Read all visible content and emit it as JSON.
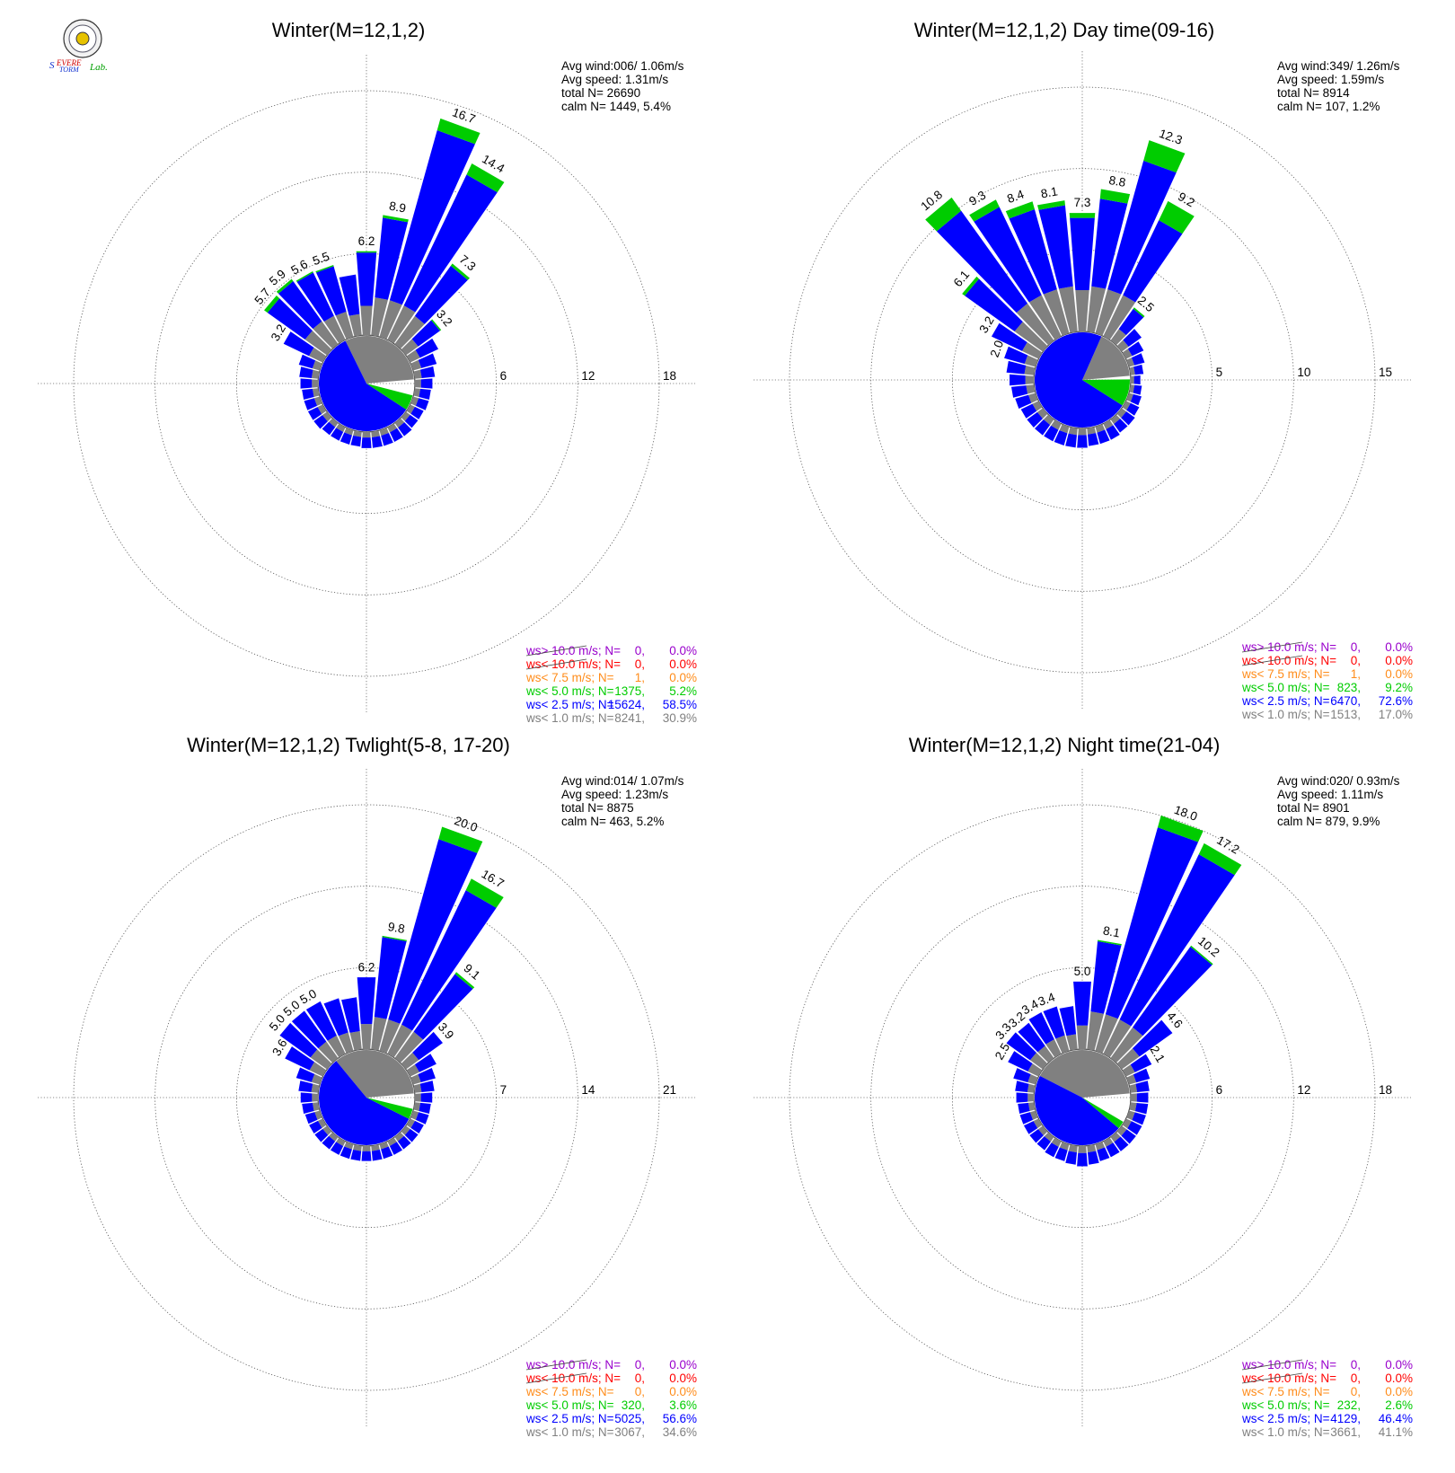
{
  "colors": {
    "ws_gt10": "#9900cc",
    "ws_lt10": "#ff0000",
    "ws_lt7_5": "#ff8c1a",
    "ws_lt5": "#00cc00",
    "ws_lt2_5": "#0000ff",
    "ws_lt1": "#808080"
  },
  "logo": {
    "icon": "severe-storm-lab-seal",
    "text": "Severe Storm Lab."
  },
  "legend_labels": [
    "ws> 10.0 m/s; N=",
    "ws< 10.0 m/s; N=",
    "ws<  7.5 m/s; N=",
    "ws<  5.0 m/s; N=",
    "ws<  2.5 m/s; N=",
    "ws<  1.0 m/s; N="
  ],
  "chart_data": [
    {
      "type": "polar-bar",
      "title": "Winter(M=12,1,2)",
      "stats": [
        "Avg wind:006/ 1.06m/s",
        "Avg speed: 1.31m/s",
        "total N=      26690",
        "calm N=   1449,   5.4%"
      ],
      "rings": [
        6,
        12,
        18
      ],
      "ring_labels": [
        "6",
        "12",
        "18"
      ],
      "rmax": 18,
      "calm_pie": {
        "gray": 0.309,
        "blue": 0.585,
        "green": 0.052
      },
      "petals": [
        {
          "dir": 0,
          "total": 6.2,
          "green": 0.1,
          "label": "6.2"
        },
        {
          "dir": 10,
          "total": 8.9,
          "green": 0.2,
          "label": "8.9"
        },
        {
          "dir": 20,
          "total": 16.7,
          "green": 0.9,
          "label": "16.7"
        },
        {
          "dir": 30,
          "total": 14.4,
          "green": 0.9,
          "label": "14.4"
        },
        {
          "dir": 40,
          "total": 7.3,
          "green": 0.2,
          "label": "7.3"
        },
        {
          "dir": 50,
          "total": 3.2,
          "green": 0.1,
          "label": "3.2"
        },
        {
          "dir": 60,
          "total": 2.3,
          "green": 0.0
        },
        {
          "dir": 70,
          "total": 1.8,
          "green": 0.0
        },
        {
          "dir": 80,
          "total": 1.5,
          "green": 0.0
        },
        {
          "dir": 90,
          "total": 1.3,
          "green": 0.0
        },
        {
          "dir": 100,
          "total": 1.2,
          "green": 0.0
        },
        {
          "dir": 110,
          "total": 1.2,
          "green": 0.0
        },
        {
          "dir": 120,
          "total": 1.1,
          "green": 0.0
        },
        {
          "dir": 130,
          "total": 1.1,
          "green": 0.0
        },
        {
          "dir": 140,
          "total": 1.2,
          "green": 0.0
        },
        {
          "dir": 150,
          "total": 1.2,
          "green": 0.0
        },
        {
          "dir": 160,
          "total": 1.2,
          "green": 0.0
        },
        {
          "dir": 170,
          "total": 1.2,
          "green": 0.0
        },
        {
          "dir": 180,
          "total": 1.2,
          "green": 0.0
        },
        {
          "dir": 190,
          "total": 1.1,
          "green": 0.0
        },
        {
          "dir": 200,
          "total": 1.1,
          "green": 0.0
        },
        {
          "dir": 210,
          "total": 1.1,
          "green": 0.0
        },
        {
          "dir": 220,
          "total": 1.1,
          "green": 0.0
        },
        {
          "dir": 230,
          "total": 1.2,
          "green": 0.0
        },
        {
          "dir": 240,
          "total": 1.2,
          "green": 0.0
        },
        {
          "dir": 250,
          "total": 1.2,
          "green": 0.0
        },
        {
          "dir": 260,
          "total": 1.2,
          "green": 0.0
        },
        {
          "dir": 270,
          "total": 1.3,
          "green": 0.0
        },
        {
          "dir": 280,
          "total": 1.4,
          "green": 0.0
        },
        {
          "dir": 290,
          "total": 1.6,
          "green": 0.0
        },
        {
          "dir": 300,
          "total": 3.2,
          "green": 0.0,
          "label": "3.2"
        },
        {
          "dir": 310,
          "total": 5.7,
          "green": 0.3,
          "label": "5.7"
        },
        {
          "dir": 320,
          "total": 5.9,
          "green": 0.2,
          "label": "5.9"
        },
        {
          "dir": 330,
          "total": 5.6,
          "green": 0.1,
          "label": "5.6"
        },
        {
          "dir": 340,
          "total": 5.5,
          "green": 0.1,
          "label": "5.5"
        },
        {
          "dir": 350,
          "total": 4.5,
          "green": 0.0
        }
      ],
      "legend": [
        {
          "n": "0",
          "pct": "0.0%"
        },
        {
          "n": "0",
          "pct": "0.0%"
        },
        {
          "n": "1",
          "pct": "0.0%"
        },
        {
          "n": "1375",
          "pct": "5.2%"
        },
        {
          "n": "15624",
          "pct": "58.5%"
        },
        {
          "n": "8241",
          "pct": "30.9%"
        }
      ]
    },
    {
      "type": "polar-bar",
      "title": "Winter(M=12,1,2) Day time(09-16)",
      "stats": [
        "Avg wind:349/ 1.26m/s",
        "Avg speed: 1.59m/s",
        "total N=      8914",
        "calm N=   107,   1.2%"
      ],
      "rings": [
        5,
        10,
        15
      ],
      "ring_labels": [
        "5",
        "10",
        "15"
      ],
      "rmax": 15,
      "calm_pie": {
        "gray": 0.17,
        "blue": 0.726,
        "green": 0.092
      },
      "petals": [
        {
          "dir": 0,
          "total": 7.3,
          "green": 0.3,
          "label": "7.3"
        },
        {
          "dir": 10,
          "total": 8.8,
          "green": 0.6,
          "label": "8.8"
        },
        {
          "dir": 20,
          "total": 12.3,
          "green": 1.3,
          "label": "12.3"
        },
        {
          "dir": 30,
          "total": 9.2,
          "green": 1.3,
          "label": "9.2"
        },
        {
          "dir": 40,
          "total": 2.5,
          "green": 0.1,
          "label": "2.5"
        },
        {
          "dir": 50,
          "total": 1.5,
          "green": 0.0
        },
        {
          "dir": 60,
          "total": 1.2,
          "green": 0.0
        },
        {
          "dir": 70,
          "total": 1.0,
          "green": 0.0
        },
        {
          "dir": 80,
          "total": 0.8,
          "green": 0.0
        },
        {
          "dir": 90,
          "total": 0.6,
          "green": 0.0
        },
        {
          "dir": 100,
          "total": 0.7,
          "green": 0.0
        },
        {
          "dir": 110,
          "total": 0.8,
          "green": 0.0
        },
        {
          "dir": 120,
          "total": 0.9,
          "green": 0.0
        },
        {
          "dir": 130,
          "total": 1.0,
          "green": 0.0
        },
        {
          "dir": 140,
          "total": 1.0,
          "green": 0.0
        },
        {
          "dir": 150,
          "total": 1.1,
          "green": 0.0
        },
        {
          "dir": 160,
          "total": 1.1,
          "green": 0.0
        },
        {
          "dir": 170,
          "total": 1.1,
          "green": 0.0
        },
        {
          "dir": 180,
          "total": 1.2,
          "green": 0.0
        },
        {
          "dir": 190,
          "total": 1.2,
          "green": 0.0
        },
        {
          "dir": 200,
          "total": 1.2,
          "green": 0.0
        },
        {
          "dir": 210,
          "total": 1.2,
          "green": 0.0
        },
        {
          "dir": 220,
          "total": 1.2,
          "green": 0.0
        },
        {
          "dir": 230,
          "total": 1.2,
          "green": 0.0
        },
        {
          "dir": 240,
          "total": 1.2,
          "green": 0.0
        },
        {
          "dir": 250,
          "total": 1.3,
          "green": 0.0
        },
        {
          "dir": 260,
          "total": 1.4,
          "green": 0.0
        },
        {
          "dir": 270,
          "total": 1.5,
          "green": 0.0
        },
        {
          "dir": 280,
          "total": 1.7,
          "green": 0.0
        },
        {
          "dir": 290,
          "total": 2.0,
          "green": 0.0,
          "label": "2.0"
        },
        {
          "dir": 300,
          "total": 3.2,
          "green": 0.0,
          "label": "3.2"
        },
        {
          "dir": 310,
          "total": 6.1,
          "green": 0.2,
          "label": "6.1"
        },
        {
          "dir": 320,
          "total": 10.8,
          "green": 1.0,
          "label": "10.8"
        },
        {
          "dir": 330,
          "total": 9.3,
          "green": 0.5,
          "label": "9.3"
        },
        {
          "dir": 340,
          "total": 8.4,
          "green": 0.5,
          "label": "8.4"
        },
        {
          "dir": 350,
          "total": 8.1,
          "green": 0.3,
          "label": "8.1"
        }
      ],
      "legend": [
        {
          "n": "0",
          "pct": "0.0%"
        },
        {
          "n": "0",
          "pct": "0.0%"
        },
        {
          "n": "1",
          "pct": "0.0%"
        },
        {
          "n": "823",
          "pct": "9.2%"
        },
        {
          "n": "6470",
          "pct": "72.6%"
        },
        {
          "n": "1513",
          "pct": "17.0%"
        }
      ]
    },
    {
      "type": "polar-bar",
      "title": "Winter(M=12,1,2) Twlight(5-8, 17-20)",
      "stats": [
        "Avg wind:014/ 1.07m/s",
        "Avg speed: 1.23m/s",
        "total N=      8875",
        "calm N=   463,   5.2%"
      ],
      "rings": [
        7,
        14,
        21
      ],
      "ring_labels": [
        "7",
        "14",
        "21"
      ],
      "rmax": 21,
      "calm_pie": {
        "gray": 0.346,
        "blue": 0.566,
        "green": 0.036
      },
      "petals": [
        {
          "dir": 0,
          "total": 6.2,
          "green": 0.0,
          "label": "6.2"
        },
        {
          "dir": 10,
          "total": 9.8,
          "green": 0.1,
          "label": "9.8"
        },
        {
          "dir": 20,
          "total": 20.0,
          "green": 1.1,
          "label": "20.0"
        },
        {
          "dir": 30,
          "total": 16.7,
          "green": 1.1,
          "label": "16.7"
        },
        {
          "dir": 40,
          "total": 9.1,
          "green": 0.2,
          "label": "9.1"
        },
        {
          "dir": 50,
          "total": 3.9,
          "green": 0.0,
          "label": "3.9"
        },
        {
          "dir": 60,
          "total": 2.5,
          "green": 0.0
        },
        {
          "dir": 70,
          "total": 2.0,
          "green": 0.0
        },
        {
          "dir": 80,
          "total": 1.7,
          "green": 0.0
        },
        {
          "dir": 90,
          "total": 1.5,
          "green": 0.0
        },
        {
          "dir": 100,
          "total": 1.4,
          "green": 0.0
        },
        {
          "dir": 110,
          "total": 1.4,
          "green": 0.0
        },
        {
          "dir": 120,
          "total": 1.3,
          "green": 0.0
        },
        {
          "dir": 130,
          "total": 1.3,
          "green": 0.0
        },
        {
          "dir": 140,
          "total": 1.3,
          "green": 0.0
        },
        {
          "dir": 150,
          "total": 1.3,
          "green": 0.0
        },
        {
          "dir": 160,
          "total": 1.3,
          "green": 0.0
        },
        {
          "dir": 170,
          "total": 1.3,
          "green": 0.0
        },
        {
          "dir": 180,
          "total": 1.3,
          "green": 0.0
        },
        {
          "dir": 190,
          "total": 1.3,
          "green": 0.0
        },
        {
          "dir": 200,
          "total": 1.3,
          "green": 0.0
        },
        {
          "dir": 210,
          "total": 1.3,
          "green": 0.0
        },
        {
          "dir": 220,
          "total": 1.3,
          "green": 0.0
        },
        {
          "dir": 230,
          "total": 1.3,
          "green": 0.0
        },
        {
          "dir": 240,
          "total": 1.3,
          "green": 0.0
        },
        {
          "dir": 250,
          "total": 1.3,
          "green": 0.0
        },
        {
          "dir": 260,
          "total": 1.4,
          "green": 0.0
        },
        {
          "dir": 270,
          "total": 1.5,
          "green": 0.0
        },
        {
          "dir": 280,
          "total": 1.7,
          "green": 0.0
        },
        {
          "dir": 290,
          "total": 2.1,
          "green": 0.0
        },
        {
          "dir": 300,
          "total": 3.6,
          "green": 0.0,
          "label": "3.6"
        },
        {
          "dir": 310,
          "total": 5.0,
          "green": 0.0,
          "label": "5.0"
        },
        {
          "dir": 320,
          "total": 5.0,
          "green": 0.0,
          "label": "5.0"
        },
        {
          "dir": 330,
          "total": 5.0,
          "green": 0.0,
          "label": "5.0"
        },
        {
          "dir": 340,
          "total": 4.7,
          "green": 0.0
        },
        {
          "dir": 350,
          "total": 4.5,
          "green": 0.0
        }
      ],
      "legend": [
        {
          "n": "0",
          "pct": "0.0%"
        },
        {
          "n": "0",
          "pct": "0.0%"
        },
        {
          "n": "0",
          "pct": "0.0%"
        },
        {
          "n": "320",
          "pct": "3.6%"
        },
        {
          "n": "5025",
          "pct": "56.6%"
        },
        {
          "n": "3067",
          "pct": "34.6%"
        }
      ]
    },
    {
      "type": "polar-bar",
      "title": "Winter(M=12,1,2) Night time(21-04)",
      "stats": [
        "Avg wind:020/ 0.93m/s",
        "Avg speed: 1.11m/s",
        "total N=      8901",
        "calm N=   879,   9.9%"
      ],
      "rings": [
        6,
        12,
        18
      ],
      "ring_labels": [
        "6",
        "12",
        "18"
      ],
      "rmax": 18,
      "calm_pie": {
        "gray": 0.411,
        "blue": 0.464,
        "green": 0.026
      },
      "petals": [
        {
          "dir": 0,
          "total": 5.0,
          "green": 0.0,
          "label": "5.0"
        },
        {
          "dir": 10,
          "total": 8.1,
          "green": 0.1,
          "label": "8.1"
        },
        {
          "dir": 20,
          "total": 18.0,
          "green": 0.9,
          "label": "18.0"
        },
        {
          "dir": 30,
          "total": 17.2,
          "green": 0.9,
          "label": "17.2"
        },
        {
          "dir": 40,
          "total": 10.2,
          "green": 0.1,
          "label": "10.2"
        },
        {
          "dir": 50,
          "total": 4.6,
          "green": 0.0,
          "label": "4.6"
        },
        {
          "dir": 60,
          "total": 2.1,
          "green": 0.0,
          "label": "2.1"
        },
        {
          "dir": 70,
          "total": 1.6,
          "green": 0.0
        },
        {
          "dir": 80,
          "total": 1.4,
          "green": 0.0
        },
        {
          "dir": 90,
          "total": 1.3,
          "green": 0.0
        },
        {
          "dir": 100,
          "total": 1.3,
          "green": 0.0
        },
        {
          "dir": 110,
          "total": 1.3,
          "green": 0.0
        },
        {
          "dir": 120,
          "total": 1.3,
          "green": 0.0
        },
        {
          "dir": 130,
          "total": 1.3,
          "green": 0.0
        },
        {
          "dir": 140,
          "total": 1.3,
          "green": 0.0
        },
        {
          "dir": 150,
          "total": 1.3,
          "green": 0.0
        },
        {
          "dir": 160,
          "total": 1.3,
          "green": 0.0
        },
        {
          "dir": 170,
          "total": 1.4,
          "green": 0.0
        },
        {
          "dir": 180,
          "total": 1.5,
          "green": 0.0
        },
        {
          "dir": 190,
          "total": 1.4,
          "green": 0.0
        },
        {
          "dir": 200,
          "total": 1.3,
          "green": 0.0
        },
        {
          "dir": 210,
          "total": 1.3,
          "green": 0.0
        },
        {
          "dir": 220,
          "total": 1.2,
          "green": 0.0
        },
        {
          "dir": 230,
          "total": 1.2,
          "green": 0.0
        },
        {
          "dir": 240,
          "total": 1.2,
          "green": 0.0
        },
        {
          "dir": 250,
          "total": 1.2,
          "green": 0.0
        },
        {
          "dir": 260,
          "total": 1.2,
          "green": 0.0
        },
        {
          "dir": 270,
          "total": 1.3,
          "green": 0.0
        },
        {
          "dir": 280,
          "total": 1.4,
          "green": 0.0
        },
        {
          "dir": 290,
          "total": 1.7,
          "green": 0.0
        },
        {
          "dir": 300,
          "total": 2.5,
          "green": 0.0,
          "label": "2.5"
        },
        {
          "dir": 310,
          "total": 3.3,
          "green": 0.0,
          "label": "3.3"
        },
        {
          "dir": 320,
          "total": 3.2,
          "green": 0.0,
          "label": "3.2"
        },
        {
          "dir": 330,
          "total": 3.4,
          "green": 0.0,
          "label": "3.4"
        },
        {
          "dir": 340,
          "total": 3.4,
          "green": 0.0,
          "label": "3.4"
        },
        {
          "dir": 350,
          "total": 3.2,
          "green": 0.0
        }
      ],
      "legend": [
        {
          "n": "0",
          "pct": "0.0%"
        },
        {
          "n": "0",
          "pct": "0.0%"
        },
        {
          "n": "0",
          "pct": "0.0%"
        },
        {
          "n": "232",
          "pct": "2.6%"
        },
        {
          "n": "4129",
          "pct": "46.4%"
        },
        {
          "n": "3661",
          "pct": "41.1%"
        }
      ]
    }
  ]
}
